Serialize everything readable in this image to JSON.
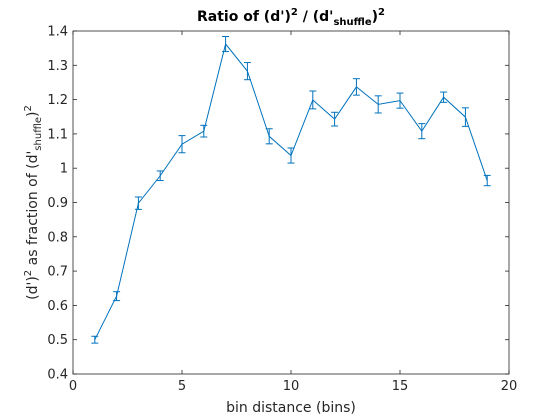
{
  "chart_data": {
    "type": "line",
    "title": "Ratio of (d')^2 / (d'_shuffle)^2",
    "title_parts": {
      "a": "Ratio of (d')",
      "sup1": "2",
      "b": " / (d'",
      "sub": "shuffle",
      "c": ")",
      "sup2": "2"
    },
    "xlabel": "bin distance (bins)",
    "ylabel": "(d')^2 as fraction of (d'_shuffle)^2",
    "ylabel_parts": {
      "a": "(d')",
      "sup1": "2",
      "b": " as fraction of (d'",
      "sub": "shuffle",
      "c": ")",
      "sup2": "2"
    },
    "xlim": [
      0,
      20
    ],
    "ylim": [
      0.4,
      1.4
    ],
    "xticks": [
      0,
      5,
      10,
      15,
      20
    ],
    "xtick_labels": [
      "0",
      "5",
      "10",
      "15",
      "20"
    ],
    "yticks": [
      0.4,
      0.5,
      0.6,
      0.7,
      0.8,
      0.9,
      1.0,
      1.1,
      1.2,
      1.3,
      1.4
    ],
    "ytick_labels": [
      "0.4",
      "0.5",
      "0.6",
      "0.7",
      "0.8",
      "0.9",
      "1",
      "1.1",
      "1.2",
      "1.3",
      "1.4"
    ],
    "grid": false,
    "line_color": "#0072BD",
    "series": [
      {
        "x": [
          1,
          2,
          3,
          4,
          5,
          6,
          7,
          8,
          9,
          10,
          11,
          12,
          13,
          14,
          15,
          16,
          17,
          18,
          19
        ],
        "y": [
          0.5,
          0.627,
          0.898,
          0.978,
          1.07,
          1.108,
          1.362,
          1.283,
          1.093,
          1.037,
          1.199,
          1.143,
          1.237,
          1.186,
          1.197,
          1.108,
          1.207,
          1.149,
          0.964
        ],
        "err": [
          0.01,
          0.013,
          0.018,
          0.014,
          0.025,
          0.017,
          0.022,
          0.025,
          0.022,
          0.022,
          0.026,
          0.02,
          0.024,
          0.025,
          0.022,
          0.022,
          0.015,
          0.027,
          0.015
        ]
      }
    ]
  }
}
